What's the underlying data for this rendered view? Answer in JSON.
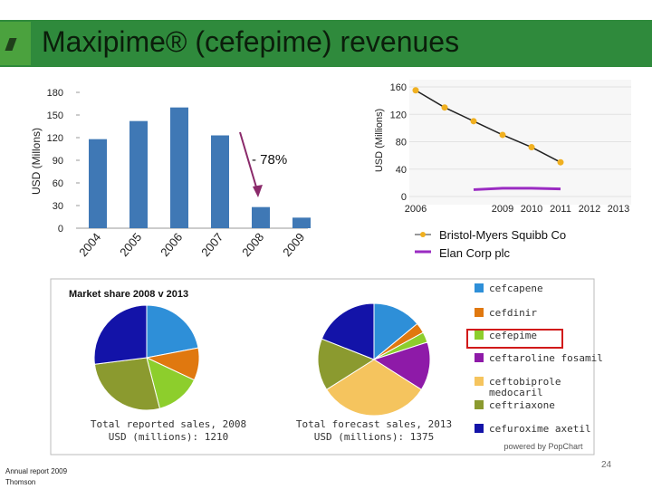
{
  "slide": {
    "title": "Maxipime® (cefepime) revenues",
    "page_number": "24",
    "source_line1": "Annual report 2009",
    "source_line2": "Thomson"
  },
  "colors": {
    "title_bar": "#2f8a3c",
    "bar": "#3f78b5",
    "bms_line": "#222222",
    "bms_marker": "#f0b020",
    "elan_line": "#9a2bc2",
    "arrow": "#8a2a6a",
    "highlight": "#d11a1a"
  },
  "chart_data": [
    {
      "type": "bar",
      "title": "",
      "ylabel": "USD (Millons)",
      "categories": [
        "2004",
        "2005",
        "2006",
        "2007",
        "2008",
        "2009"
      ],
      "values": [
        118,
        142,
        160,
        123,
        28,
        14
      ],
      "ylim": [
        0,
        180
      ],
      "yticks": [
        0,
        30,
        60,
        90,
        120,
        150,
        180
      ],
      "annotation": "- 78%"
    },
    {
      "type": "line",
      "ylabel": "USD (Millions)",
      "x": [
        "2006",
        "2009",
        "2010",
        "2011",
        "2012",
        "2013"
      ],
      "ylim": [
        0,
        160
      ],
      "yticks": [
        0,
        40,
        80,
        120,
        160
      ],
      "series": [
        {
          "name": "Bristol-Myers Squibb Co",
          "x": [
            2006,
            2007,
            2008,
            2009,
            2010,
            2011
          ],
          "values": [
            155,
            130,
            110,
            90,
            72,
            50
          ]
        },
        {
          "name": "Elan Corp plc",
          "x": [
            2008,
            2009,
            2010,
            2011
          ],
          "values": [
            10,
            12,
            12,
            11
          ]
        }
      ],
      "x_range": [
        2006,
        2013
      ],
      "x_ticks": [
        2006,
        2009,
        2010,
        2011,
        2012,
        2013
      ]
    },
    {
      "type": "pie",
      "panel_title": "Market share 2008 v 2013",
      "label_line1": "Total reported sales, 2008",
      "label_line2": "USD (millions): 1210",
      "labels": [
        "cefcapene",
        "cefdinir",
        "cefepime",
        "ceftaroline fosamil",
        "ceftobiprole medocaril",
        "ceftriaxone",
        "cefuroxime axetil"
      ],
      "values": [
        22,
        10,
        14,
        0,
        0,
        27,
        27
      ]
    },
    {
      "type": "pie",
      "label_line1": "Total forecast sales, 2013",
      "label_line2": "USD (millions): 1375",
      "labels": [
        "cefcapene",
        "cefdinir",
        "cefepime",
        "ceftaroline fosamil",
        "ceftobiprole medocaril",
        "ceftriaxone",
        "cefuroxime axetil"
      ],
      "values": [
        14,
        3,
        3,
        14,
        32,
        15,
        19
      ]
    }
  ],
  "legend": {
    "items": [
      {
        "label": "cefcapene",
        "color": "#2e8fd8"
      },
      {
        "label": "cefdinir",
        "color": "#e0780f"
      },
      {
        "label": "cefepime",
        "color": "#8dce2c"
      },
      {
        "label": "ceftaroline fosamil",
        "color": "#8e1aa8"
      },
      {
        "label": "ceftobiprole",
        "label2": "medocaril",
        "color": "#f5c45e"
      },
      {
        "label": "ceftriaxone",
        "color": "#8b9a2f"
      },
      {
        "label": "cefuroxime axetil",
        "color": "#1313a8"
      }
    ],
    "powered_by": "powered by PopChart"
  }
}
